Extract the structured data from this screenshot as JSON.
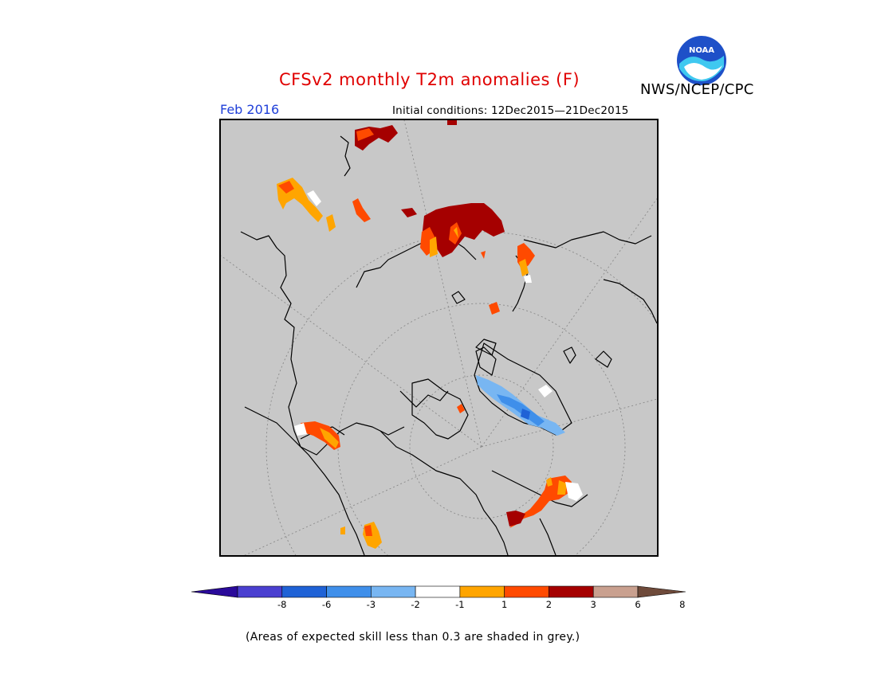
{
  "header": {
    "title": "CFSv2 monthly T2m anomalies (F)",
    "agency": "NWS/NCEP/CPC",
    "logo_text": "NOAA",
    "month": "Feb 2016",
    "initial_conditions": "Initial conditions: 12Dec2015—21Dec2015"
  },
  "colorbar": {
    "tick_labels": [
      "-8",
      "-6",
      "-3",
      "-2",
      "-1",
      "1",
      "2",
      "3",
      "6",
      "8"
    ],
    "bins": [
      {
        "color": "#2a0a9a"
      },
      {
        "color": "#4a3fd0"
      },
      {
        "color": "#1f62d6"
      },
      {
        "color": "#3f8fea"
      },
      {
        "color": "#78b6f2"
      },
      {
        "color": "#ffffff"
      },
      {
        "color": "#ffa500"
      },
      {
        "color": "#ff4a00"
      },
      {
        "color": "#a50000"
      },
      {
        "color": "#c9a08f"
      },
      {
        "color": "#6e4a3a"
      }
    ]
  },
  "note": "(Areas of expected skill less than 0.3 are shaded in grey.)",
  "colors": {
    "title": "#e00000",
    "month": "#1f3fd9",
    "skill_grey": "#c8c8c8",
    "noaa_blue": "#1e50c8",
    "noaa_cyan": "#3fc8f0"
  }
}
